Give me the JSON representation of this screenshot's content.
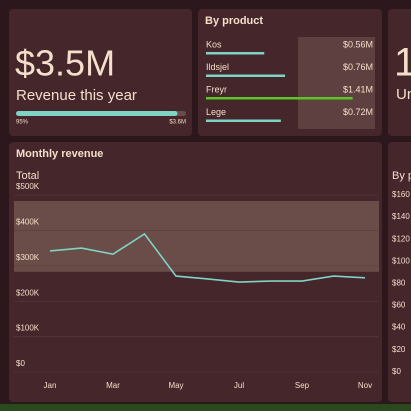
{
  "kpi_card": {
    "value": {
      "value": 3.5,
      "label": "$3.5M"
    },
    "caption": "Revenue this year",
    "progress": {
      "value": 95,
      "label": "95%"
    },
    "target": {
      "value": 3.6,
      "label": "$3.6M"
    }
  },
  "product_card": {
    "title": "By product",
    "categories": [
      "Kos",
      "Ildsjel",
      "Freyr",
      "Lege"
    ],
    "values": [
      0.56,
      0.76,
      1.41,
      0.72
    ],
    "value_labels": [
      "$0.56M",
      "$0.76M",
      "$1.41M",
      "$0.72M"
    ],
    "colors": [
      "#7fd3c3",
      "#7fd3c3",
      "#5ec425",
      "#7fd3c3"
    ]
  },
  "units_card": {
    "value": "1",
    "caption": "Un"
  },
  "chart_data": {
    "type": "line",
    "title": "Monthly revenue",
    "subtitle": "Total",
    "categories": [
      "Jan",
      null,
      "Mar",
      null,
      "May",
      null,
      "Jul",
      null,
      "Sep",
      null,
      "Nov"
    ],
    "values": [
      342000,
      350000,
      333000,
      390000,
      271000,
      263000,
      254000,
      257000,
      257000,
      271000,
      266000
    ],
    "color": "#7fd3c3",
    "ylim": [
      0,
      500000
    ],
    "yticks": [
      {
        "value": 0,
        "label": "$0"
      },
      {
        "value": 100000,
        "label": "$100K"
      },
      {
        "value": 200000,
        "label": "$200K"
      },
      {
        "value": 300000,
        "label": "$300K"
      },
      {
        "value": 400000,
        "label": "$400K"
      },
      {
        "value": 500000,
        "label": "$500K"
      }
    ],
    "band": [
      283000,
      483000
    ],
    "grid": true
  },
  "side_card": {
    "title": "By p",
    "ticks": [
      "$160",
      "$140",
      "$120",
      "$100",
      "$80",
      "$60",
      "$40",
      "$20",
      "$0"
    ]
  }
}
